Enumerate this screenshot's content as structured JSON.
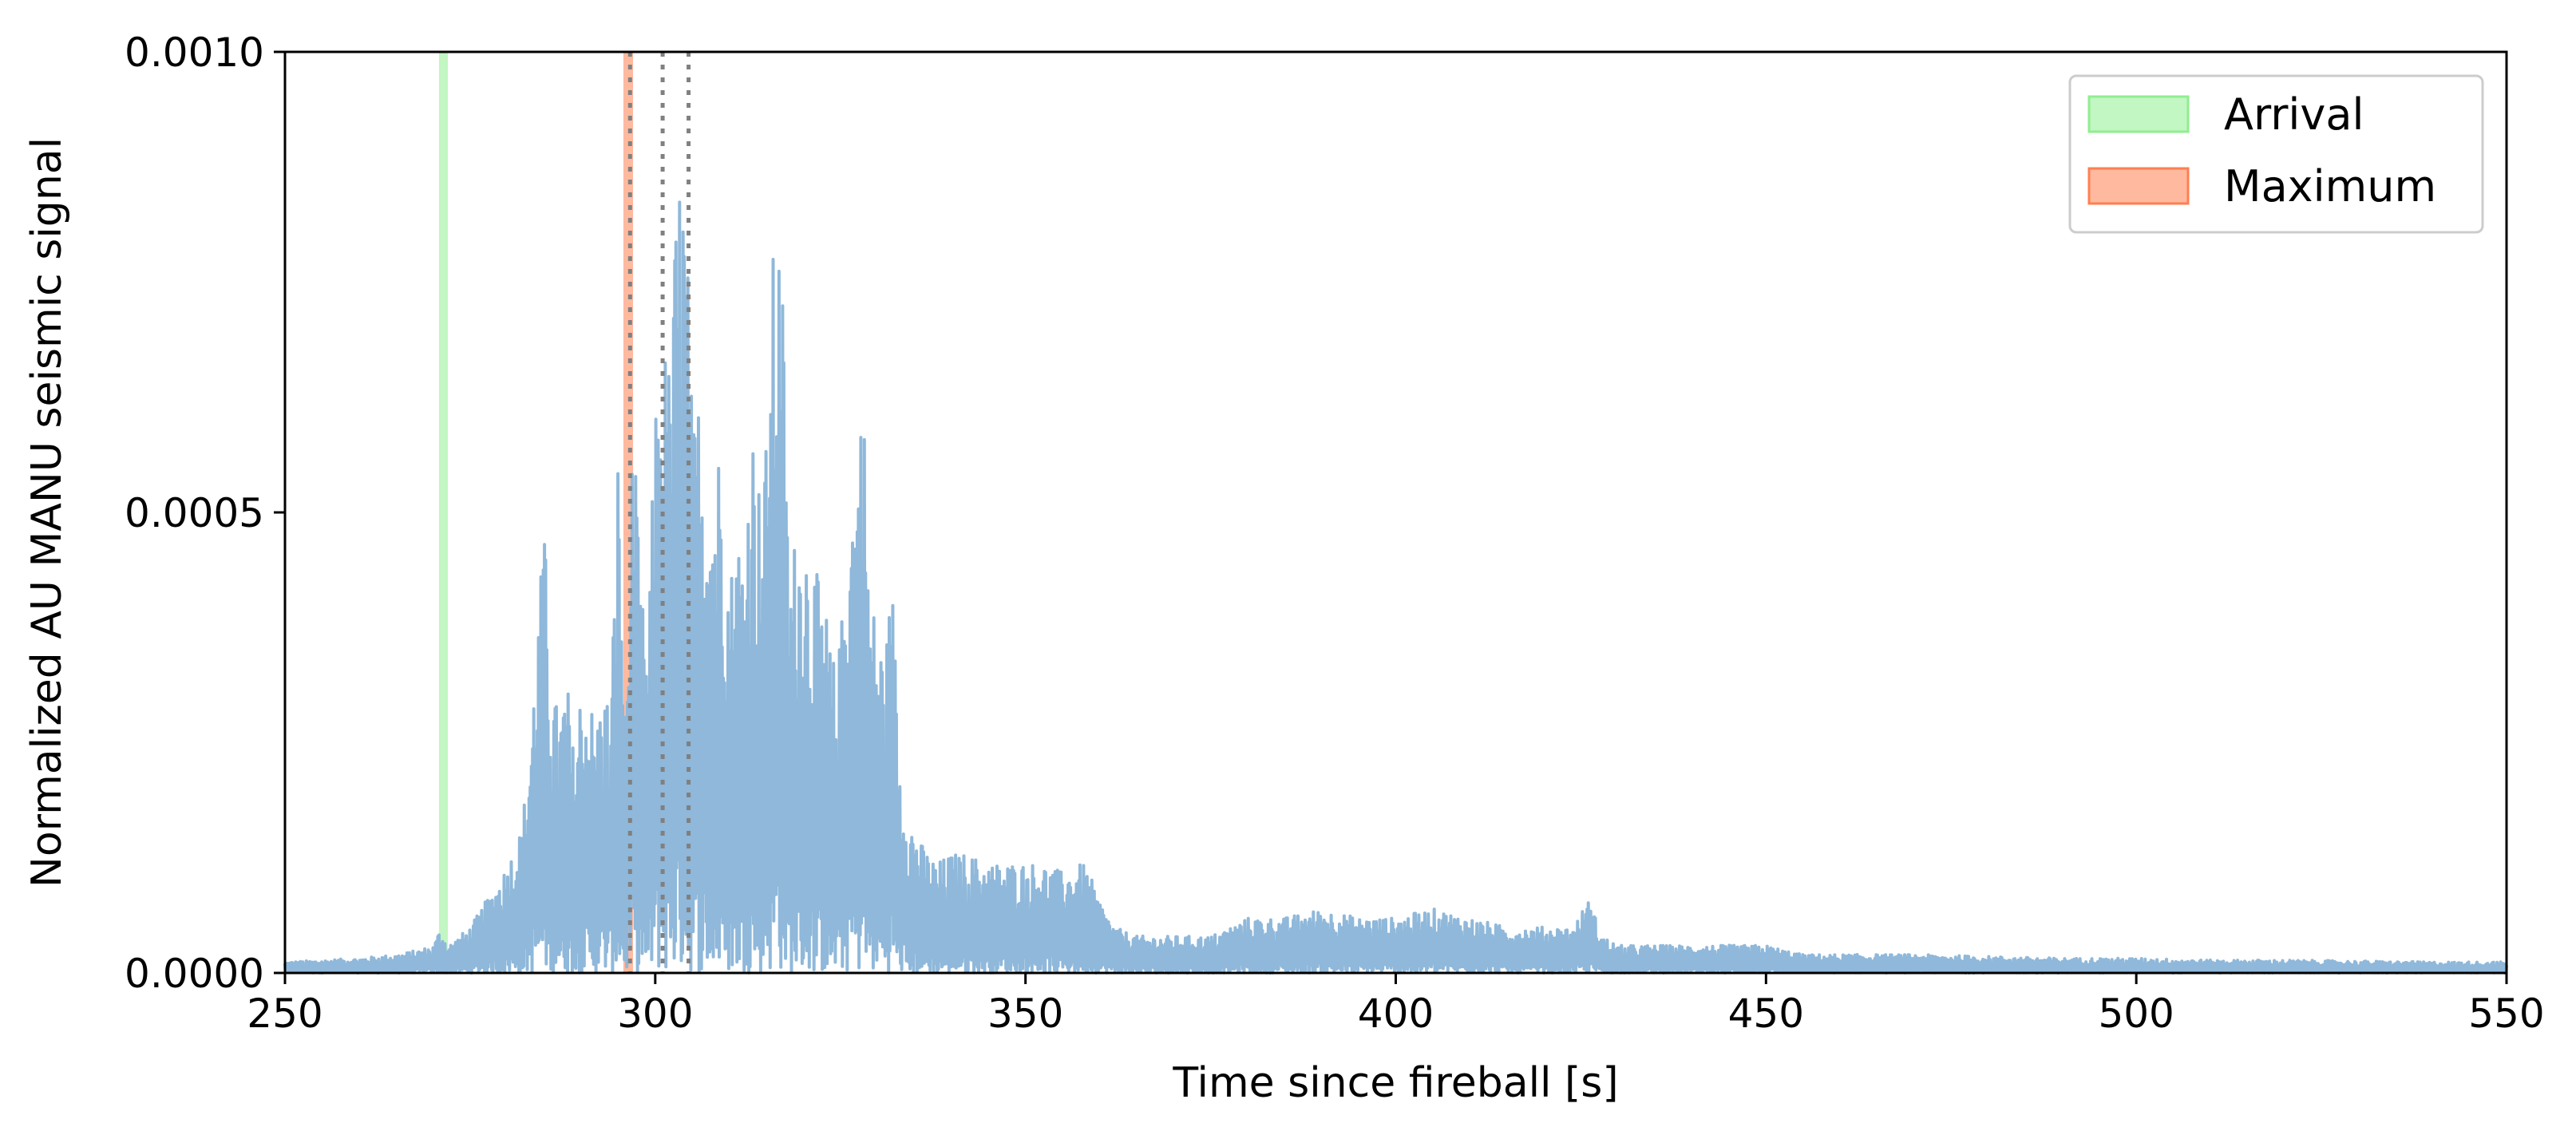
{
  "chart_data": {
    "type": "line",
    "title": "",
    "xlabel": "Time since fireball [s]",
    "ylabel": "Normalized AU MANU seismic signal",
    "xlim": [
      250,
      550
    ],
    "ylim": [
      0,
      0.001
    ],
    "x_ticks": [
      {
        "value": 250,
        "label": "250"
      },
      {
        "value": 300,
        "label": "300"
      },
      {
        "value": 350,
        "label": "350"
      },
      {
        "value": 400,
        "label": "400"
      },
      {
        "value": 450,
        "label": "450"
      },
      {
        "value": 500,
        "label": "500"
      },
      {
        "value": 550,
        "label": "550"
      }
    ],
    "y_ticks": [
      {
        "value": 0,
        "label": "0.0000"
      },
      {
        "value": 0.0005,
        "label": "0.0005"
      },
      {
        "value": 0.001,
        "label": "0.0010"
      }
    ],
    "grid": false,
    "legend_position": "top-right",
    "series": [
      {
        "color": "#8fb8da",
        "envelope": {
          "x": [
            250,
            255,
            260,
            265,
            268,
            270,
            271,
            272,
            275,
            278,
            280,
            282,
            283,
            284,
            285,
            286,
            287,
            288,
            289,
            290,
            291,
            292,
            293,
            294,
            295,
            296,
            297,
            298,
            299,
            300,
            301,
            302,
            303,
            304,
            305,
            306,
            307,
            308,
            309,
            310,
            311,
            312,
            313,
            314,
            315,
            316,
            317,
            318,
            319,
            320,
            321,
            322,
            323,
            324,
            325,
            326,
            327,
            328,
            329,
            330,
            331,
            332,
            333,
            334,
            336,
            338,
            340,
            342,
            345,
            348,
            352,
            355,
            358,
            360,
            362,
            365,
            370,
            375,
            380,
            385,
            390,
            395,
            400,
            405,
            410,
            415,
            420,
            424,
            426,
            428,
            430,
            435,
            440,
            445,
            450,
            455,
            460,
            470,
            480,
            490,
            500,
            510,
            520,
            530,
            540,
            550
          ],
          "y": [
            1.2e-05,
            1.4e-05,
            1.6e-05,
            2e-05,
            2.5e-05,
            3e-05,
            5e-05,
            3e-05,
            5e-05,
            9e-05,
            0.00012,
            0.00016,
            0.00025,
            0.00037,
            0.00049,
            0.00032,
            0.00028,
            0.00033,
            0.00024,
            0.00032,
            0.00031,
            0.00027,
            0.00032,
            0.00029,
            0.00058,
            0.00026,
            0.00061,
            0.00042,
            0.00036,
            0.00062,
            0.0007,
            0.00066,
            0.00088,
            0.00089,
            0.0006,
            0.00064,
            0.00058,
            0.00055,
            0.0006,
            0.00043,
            0.00049,
            0.00047,
            0.00062,
            0.00054,
            0.00058,
            0.0008,
            0.00082,
            0.00045,
            0.00048,
            0.00051,
            0.00045,
            0.00043,
            0.0004,
            0.00034,
            0.00036,
            0.00052,
            0.00054,
            0.00066,
            0.00042,
            0.00038,
            0.00035,
            0.00043,
            0.00024,
            0.00018,
            0.00014,
            0.00012,
            0.00013,
            0.00013,
            0.00012,
            0.00012,
            0.00012,
            0.00011,
            0.00012,
            8e-05,
            5e-05,
            4e-05,
            4e-05,
            4e-05,
            6e-05,
            6e-05,
            7e-05,
            6e-05,
            6e-05,
            7e-05,
            6e-05,
            5e-05,
            5e-05,
            5e-05,
            8e-05,
            4e-05,
            3e-05,
            3e-05,
            3e-05,
            3e-05,
            3e-05,
            2e-05,
            2e-05,
            2e-05,
            1.8e-05,
            1.6e-05,
            1.6e-05,
            1.4e-05,
            1.4e-05,
            1.3e-05,
            1.2e-05,
            1.2e-05
          ]
        }
      }
    ],
    "bands": [
      {
        "name": "Arrival",
        "x0": 270.8,
        "x1": 272.0,
        "color": "#90ee90",
        "opacity": 0.55
      },
      {
        "name": "Maximum",
        "x0": 295.7,
        "x1": 297.0,
        "color": "#ff7f50",
        "opacity": 0.55
      }
    ],
    "reference_lines": [
      {
        "x": 296.6,
        "color": "#808080",
        "style": "dotted"
      },
      {
        "x": 301.0,
        "color": "#808080",
        "style": "dotted"
      },
      {
        "x": 304.5,
        "color": "#808080",
        "style": "dotted"
      }
    ],
    "legend": [
      {
        "label": "Arrival",
        "color": "#90ee90"
      },
      {
        "label": "Maximum",
        "color": "#ff7f50"
      }
    ]
  }
}
